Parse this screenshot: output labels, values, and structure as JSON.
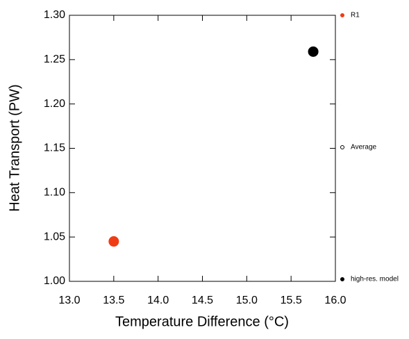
{
  "chart_data": {
    "type": "scatter",
    "xlabel": "Temperature Difference (°C)",
    "ylabel": "Heat Transport (PW)",
    "xlim": [
      13.0,
      16.0
    ],
    "ylim": [
      1.0,
      1.3
    ],
    "xticks": [
      {
        "value": 13,
        "label": "13.0"
      },
      13.5,
      {
        "value": 14,
        "label": "14.0"
      },
      14.5,
      {
        "value": 15,
        "label": "15.0"
      },
      15.5,
      {
        "value": 16,
        "label": "16.0"
      }
    ],
    "yticks": [
      {
        "value": 1.0,
        "label": "1.00"
      },
      1.05,
      {
        "value": 1.1,
        "label": "1.10"
      },
      1.15,
      {
        "value": 1.2,
        "label": "1.20"
      },
      1.25,
      {
        "value": 1.3,
        "label": "1.30"
      }
    ],
    "series": [
      {
        "name": "R1",
        "color": "#f03c14",
        "marker": "filled",
        "x": [
          13.5
        ],
        "values": [
          1.045
        ]
      },
      {
        "name": "Average",
        "color": "#000000",
        "marker": "open",
        "x": [],
        "values": []
      },
      {
        "name": "high-res. model",
        "color": "#000000",
        "marker": "filled",
        "x": [
          15.75
        ],
        "values": [
          1.259
        ]
      }
    ]
  }
}
